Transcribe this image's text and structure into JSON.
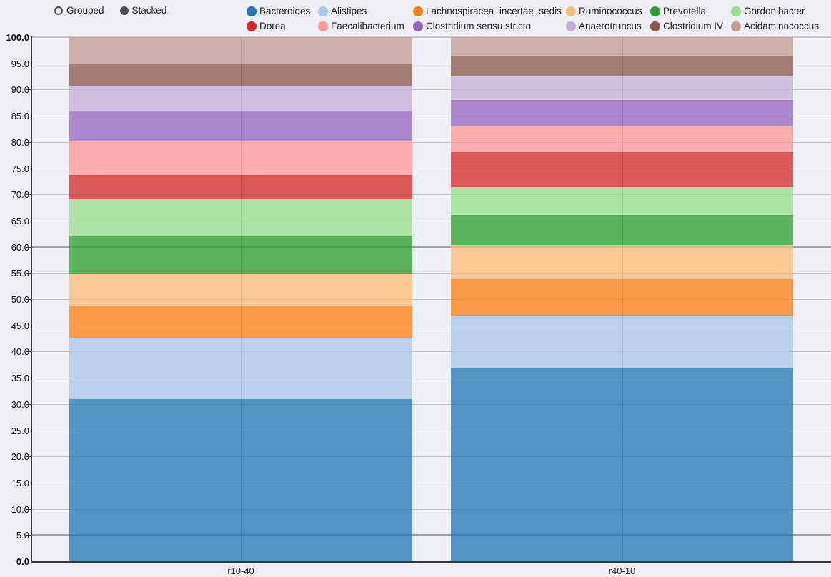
{
  "controls": {
    "grouped_label": "Grouped",
    "stacked_label": "Stacked",
    "selected_mode": "Stacked"
  },
  "chart_data": {
    "type": "bar",
    "stacked": true,
    "title": "",
    "xlabel": "",
    "ylabel": "",
    "categories": [
      "r10-40",
      "r40-10"
    ],
    "series": [
      {
        "name": "Bacteroides",
        "color": "#1f77b4",
        "values": [
          30.9,
          36.8
        ]
      },
      {
        "name": "Alistipes",
        "color": "#aec7e8",
        "values": [
          11.7,
          10.0
        ]
      },
      {
        "name": "Lachnospiracea_incertae_sedis",
        "color": "#ff7f0e",
        "values": [
          6.1,
          7.0
        ]
      },
      {
        "name": "Ruminococcus",
        "color": "#ffbb78",
        "values": [
          6.2,
          6.5
        ]
      },
      {
        "name": "Prevotella",
        "color": "#2ca02c",
        "values": [
          7.1,
          5.8
        ]
      },
      {
        "name": "Gordonibacter",
        "color": "#98df8a",
        "values": [
          7.2,
          5.3
        ]
      },
      {
        "name": "Dorea",
        "color": "#d62728",
        "values": [
          4.5,
          6.6
        ]
      },
      {
        "name": "Faecalibacterium",
        "color": "#ff9896",
        "values": [
          6.4,
          5.0
        ]
      },
      {
        "name": "Clostridium sensu stricto",
        "color": "#9467bd",
        "values": [
          5.8,
          5.0
        ]
      },
      {
        "name": "Anaerotruncus",
        "color": "#c5b0d5",
        "values": [
          4.8,
          4.5
        ]
      },
      {
        "name": "Clostridium IV",
        "color": "#8c564b",
        "values": [
          4.3,
          3.9
        ]
      },
      {
        "name": "Acidaminococcus",
        "color": "#c49c94",
        "values": [
          5.1,
          3.6
        ]
      }
    ],
    "ylim": [
      0,
      100
    ],
    "ytick_step": 5,
    "ytick_labels": [
      "0.0",
      "5.0",
      "10.0",
      "15.0",
      "20.0",
      "25.0",
      "30.0",
      "35.0",
      "40.0",
      "45.0",
      "50.0",
      "55.0",
      "60.0",
      "65.0",
      "70.0",
      "75.0",
      "80.0",
      "85.0",
      "90.0",
      "95.0",
      "100.0"
    ],
    "bold_ytick_labels": [
      "0.0",
      "100.0"
    ],
    "emphasized_gridlines": [
      5,
      60
    ],
    "grid": true,
    "legend_position": "top",
    "bar_opacity": 0.76,
    "background_color": "#edf0f5",
    "gridline_color": "#bfc3cb",
    "emphasized_gridline_color": "#9aa0aa",
    "axis_color": "#33363b"
  }
}
